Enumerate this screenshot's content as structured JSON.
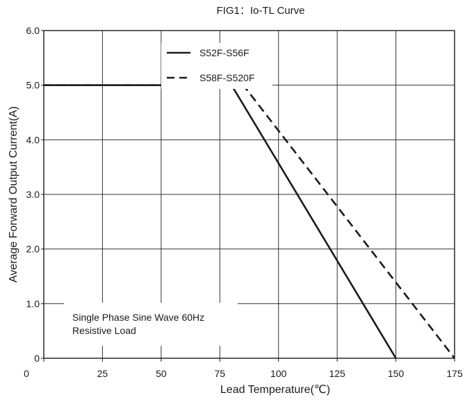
{
  "chart_data": {
    "type": "line",
    "title": "FIG1：Io-TL Curve",
    "xlabel": "Lead Temperature(℃)",
    "ylabel": "Average Forward Output Current(A)",
    "xlim": [
      0,
      175
    ],
    "ylim": [
      0,
      6
    ],
    "x_ticks": [
      0,
      25,
      50,
      75,
      100,
      125,
      150,
      175
    ],
    "x_tick_labels": [
      "0",
      "25",
      "50",
      "75",
      "100",
      "125",
      "150",
      "175"
    ],
    "y_ticks": [
      0,
      1,
      2,
      3,
      4,
      5,
      6
    ],
    "y_tick_labels": [
      "0",
      "1.0",
      "2.0",
      "3.0",
      "4.0",
      "5.0",
      "6.0"
    ],
    "grid": true,
    "legend_position": "top-center",
    "series": [
      {
        "name": "S52F-S56F",
        "style": "solid",
        "color": "#1a1a1a",
        "x": [
          0,
          80,
          150
        ],
        "y": [
          5.0,
          5.0,
          0
        ]
      },
      {
        "name": "S58F-S520F",
        "style": "dashed",
        "color": "#1a1a1a",
        "x": [
          0,
          85,
          175
        ],
        "y": [
          5.0,
          5.0,
          0
        ]
      }
    ],
    "annotation": {
      "lines": [
        "Single Phase Sine Wave 60Hz",
        "Resistive Load"
      ]
    }
  }
}
